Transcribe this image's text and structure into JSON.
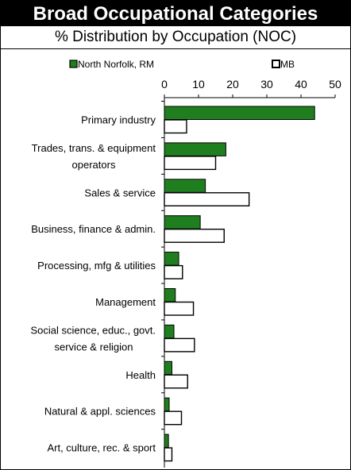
{
  "header": {
    "title": "Broad Occupational Categories",
    "subtitle": "% Distribution by Occupation (NOC)"
  },
  "colors": {
    "north_norfolk": "#1f7f1f",
    "mb": "#ffffff",
    "outline": "#000000"
  },
  "chart_data": {
    "type": "bar",
    "orientation": "horizontal",
    "title": "Broad Occupational Categories",
    "subtitle": "% Distribution by Occupation (NOC)",
    "xlim": [
      0,
      50
    ],
    "xticks": [
      0,
      10,
      20,
      30,
      40,
      50
    ],
    "x_axis_position": "top",
    "grid": false,
    "legend_position": "top",
    "categories": [
      [
        "Primary industry"
      ],
      [
        "Trades, trans. & equipment",
        "operators"
      ],
      [
        "Sales & service"
      ],
      [
        "Business, finance & admin."
      ],
      [
        "Processing, mfg & utilities"
      ],
      [
        "Management"
      ],
      [
        "Social science, educ., govt.",
        "service & religion"
      ],
      [
        "Health"
      ],
      [
        "Natural & appl. sciences"
      ],
      [
        "Art, culture, rec. & sport"
      ]
    ],
    "series": [
      {
        "name": "North Norfolk, RM",
        "values": [
          44.0,
          18.0,
          12.0,
          10.5,
          4.2,
          3.2,
          2.8,
          2.2,
          1.4,
          1.2
        ]
      },
      {
        "name": "MB",
        "values": [
          6.5,
          15.0,
          24.8,
          17.5,
          5.3,
          8.5,
          8.8,
          6.8,
          5.0,
          2.2
        ]
      }
    ]
  }
}
